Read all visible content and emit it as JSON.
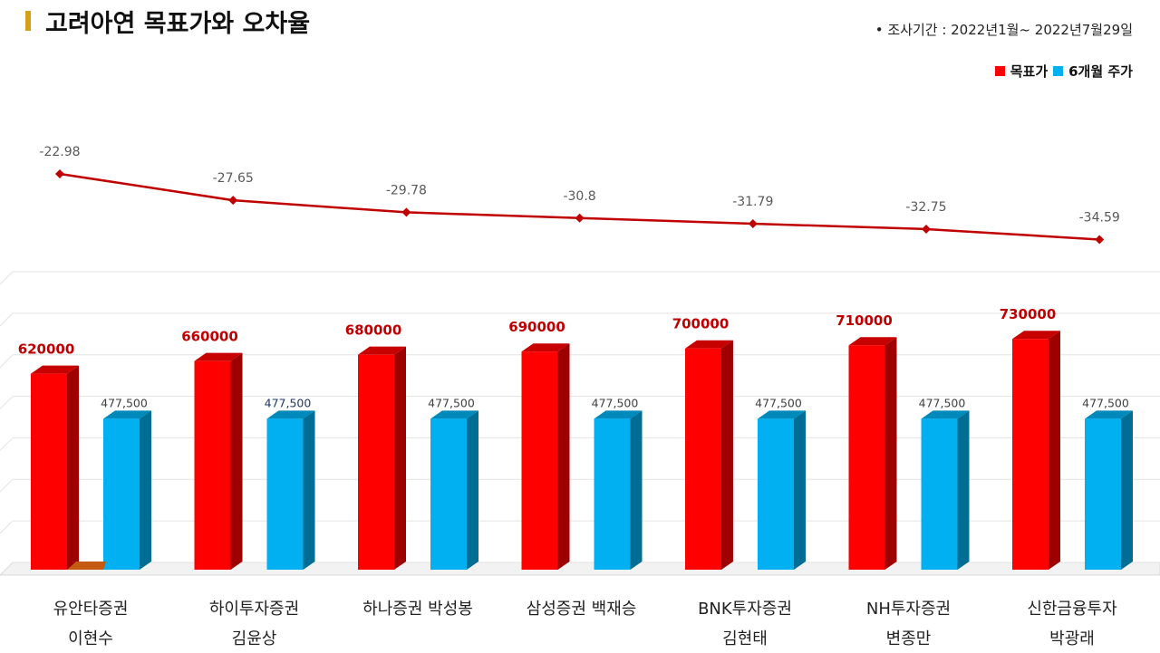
{
  "title": "고려아연 목표가와 오차율",
  "period": "•  조사기간 : 2022년1월~ 2022년7월29일",
  "legend": {
    "target_label": "목표가",
    "price_label": "6개월 주가",
    "target_color": "#ff0000",
    "price_color": "#00b0f0"
  },
  "chart_data": {
    "type": "bar",
    "categories": [
      [
        "유안타증권",
        "이현수"
      ],
      [
        "하이투자증권",
        "김윤상"
      ],
      [
        "하나증권  박성봉"
      ],
      [
        "삼성증권  백재승"
      ],
      [
        "BNK투자증권",
        "김현태"
      ],
      [
        "NH투자증권",
        "변종만"
      ],
      [
        "신한금융투자",
        "박광래"
      ]
    ],
    "series": [
      {
        "name": "목표가",
        "values": [
          620000,
          660000,
          680000,
          690000,
          700000,
          710000,
          730000
        ],
        "labels": [
          "620000",
          "660000",
          "680000",
          "690000",
          "700000",
          "710000",
          "730000"
        ],
        "color": "#ff0000"
      },
      {
        "name": "6개월 주가",
        "values": [
          477500,
          477500,
          477500,
          477500,
          477500,
          477500,
          477500
        ],
        "labels": [
          "477,500",
          "477,500",
          "477,500",
          "477,500",
          "477,500",
          "477,500",
          "477,500"
        ],
        "color": "#00b0f0"
      }
    ],
    "error_rate": {
      "values": [
        -22.98,
        -27.65,
        -29.78,
        -30.8,
        -31.79,
        -32.75,
        -34.59
      ],
      "labels": [
        "-22.98",
        "-27.65",
        "-29.78",
        "-30.8",
        "-31.79",
        "-32.75",
        "-34.59"
      ],
      "color": "#c00000"
    },
    "grid": true
  }
}
